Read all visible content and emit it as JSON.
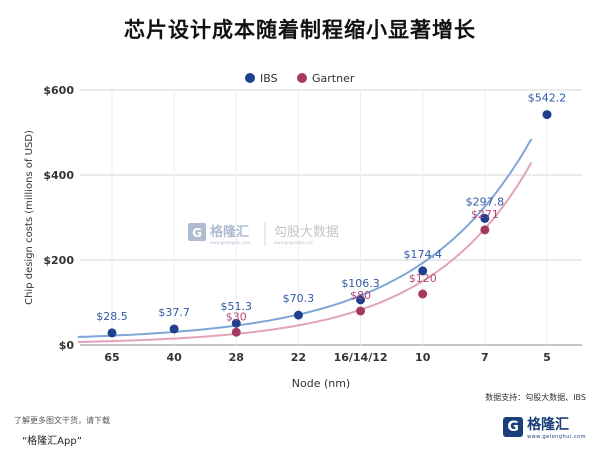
{
  "title": "芯片设计成本随着制程缩小显著增长",
  "footer": {
    "note": "了解更多图文干货，请下载",
    "app": "“格隆汇App”",
    "logo_text": "格隆汇",
    "logo_sub": "www.gelonghui.com"
  },
  "source_label": "数据支持：勾股大数据、IBS",
  "watermark": {
    "brand": "格隆汇",
    "sub": "www.gelonghui.com",
    "brand2": "勾股大数据",
    "sub2": "www.gogudata.com"
  },
  "colors": {
    "ibs": "#1f3f8f",
    "gartner": "#a43a63",
    "ibs_curve": "#7fa6d8",
    "gartner_curve": "#e2a3b7"
  },
  "chart_data": {
    "type": "scatter",
    "categories": [
      "65",
      "40",
      "28",
      "22",
      "16/14/12",
      "10",
      "7",
      "5"
    ],
    "xlabel": "Node (nm)",
    "ylabel": "Chip design costs (millions of USD)",
    "ylim": [
      0,
      600
    ],
    "yticks": [
      0,
      200,
      400,
      600
    ],
    "ytick_labels": [
      "$0",
      "$200",
      "$400",
      "$600"
    ],
    "grid": true,
    "legend_position": "top-left",
    "series": [
      {
        "name": "IBS",
        "values": [
          28.5,
          37.7,
          51.3,
          70.3,
          106.3,
          174.4,
          297.8,
          542.2
        ],
        "labels": [
          "$28.5",
          "$37.7",
          "$51.3",
          "$70.3",
          "$106.3",
          "$174.4",
          "$297.8",
          "$542.2"
        ]
      },
      {
        "name": "Gartner",
        "values": [
          null,
          null,
          30,
          null,
          80,
          120,
          271,
          null
        ],
        "labels": [
          null,
          null,
          "$30",
          null,
          "$80",
          "$120",
          "$271",
          null
        ]
      }
    ]
  }
}
